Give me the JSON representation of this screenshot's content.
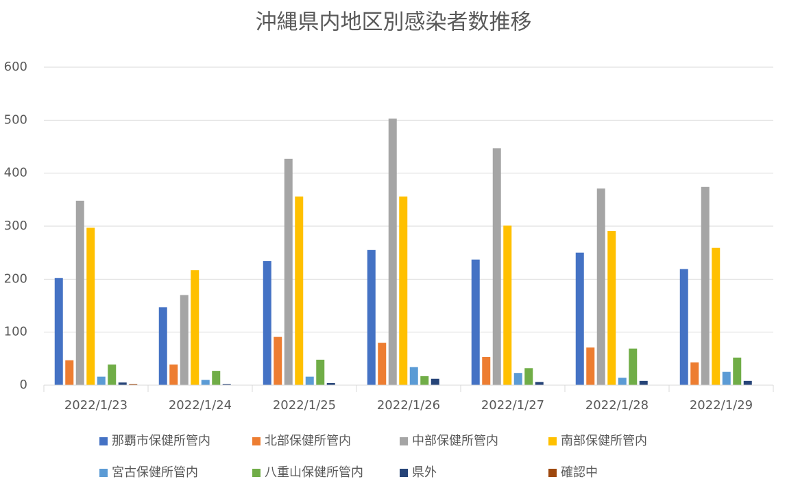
{
  "chart_data": {
    "type": "bar",
    "title": "沖縄県内地区別感染者数推移",
    "categories": [
      "2022/1/23",
      "2022/1/24",
      "2022/1/25",
      "2022/1/26",
      "2022/1/27",
      "2022/1/28",
      "2022/1/29"
    ],
    "series": [
      {
        "name": "那覇市保健所管内",
        "color": "#4472c4",
        "values": [
          202,
          147,
          234,
          255,
          237,
          250,
          219
        ]
      },
      {
        "name": "北部保健所管内",
        "color": "#ed7d31",
        "values": [
          47,
          39,
          91,
          80,
          53,
          71,
          43
        ]
      },
      {
        "name": "中部保健所管内",
        "color": "#a5a5a5",
        "values": [
          348,
          170,
          427,
          503,
          447,
          371,
          374
        ]
      },
      {
        "name": "南部保健所管内",
        "color": "#ffc000",
        "values": [
          297,
          217,
          356,
          356,
          301,
          291,
          259
        ]
      },
      {
        "name": "宮古保健所管内",
        "color": "#5b9bd5",
        "values": [
          16,
          10,
          16,
          34,
          23,
          14,
          25
        ]
      },
      {
        "name": "八重山保健所管内",
        "color": "#70ad47",
        "values": [
          39,
          27,
          48,
          17,
          32,
          69,
          52
        ]
      },
      {
        "name": "県外",
        "color": "#264478",
        "values": [
          5,
          2,
          4,
          12,
          6,
          8,
          8
        ]
      },
      {
        "name": "確認中",
        "color": "#9e480e",
        "values": [
          2,
          0,
          0,
          0,
          0,
          0,
          0
        ]
      }
    ],
    "ylim": [
      0,
      600
    ],
    "yticks": [
      0,
      100,
      200,
      300,
      400,
      500,
      600
    ],
    "grid": true,
    "legend": "bottom"
  }
}
